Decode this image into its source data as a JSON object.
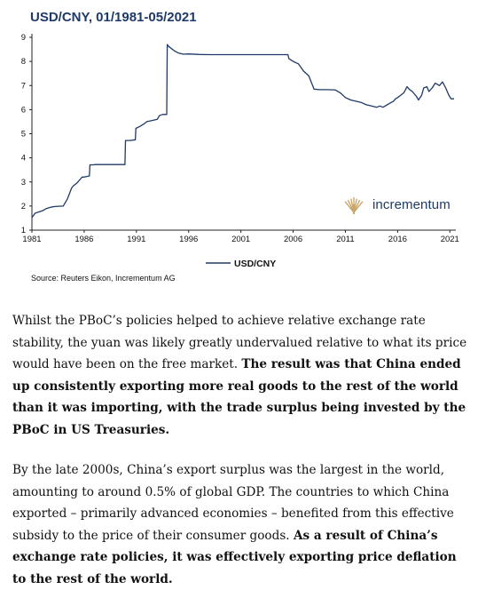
{
  "chart_title": "USD/CNY, 01/1981-05/2021",
  "source": "Source: Reuters Eikon, Incrementum AG",
  "logo": {
    "text": "incrementum",
    "color": "#c9a76b"
  },
  "colors": {
    "title": "#1f3a68",
    "line": "#1f3a68"
  },
  "chart_data": {
    "type": "line",
    "title": "USD/CNY, 01/1981-05/2021",
    "xlim": [
      1981,
      2021.4
    ],
    "ylim": [
      1,
      9
    ],
    "x_ticks": [
      1981,
      1986,
      1991,
      1996,
      2001,
      2006,
      2011,
      2016,
      2021
    ],
    "x_tick_labels": [
      "1981",
      "1986",
      "1991",
      "1996",
      "2001",
      "2006",
      "2011",
      "2016",
      "2021"
    ],
    "y_ticks": [
      1,
      2,
      3,
      4,
      5,
      6,
      7,
      8,
      9
    ],
    "y_tick_labels": [
      "1",
      "2",
      "3",
      "4",
      "5",
      "6",
      "7",
      "8",
      "9"
    ],
    "grid": false,
    "legend": "bottom-center",
    "series": [
      {
        "name": "USD/CNY",
        "color": "#1f3a68",
        "x": [
          1981.0,
          1981.3,
          1981.6,
          1982.0,
          1982.4,
          1982.8,
          1983.2,
          1983.6,
          1984.0,
          1984.4,
          1984.8,
          1985.0,
          1985.3,
          1985.6,
          1985.8,
          1986.0,
          1986.5,
          1986.55,
          1986.9,
          1987.0,
          1987.5,
          1988.0,
          1988.5,
          1989.0,
          1989.9,
          1989.95,
          1990.4,
          1990.9,
          1990.95,
          1991.3,
          1991.7,
          1992.0,
          1992.5,
          1993.0,
          1993.2,
          1993.5,
          1993.9,
          1993.95,
          1994.1,
          1994.6,
          1995.0,
          1995.5,
          1996.0,
          1997.0,
          1998.0,
          2000.0,
          2002.0,
          2004.0,
          2005.5,
          2005.6,
          2006.0,
          2006.5,
          2007.0,
          2007.5,
          2008.0,
          2008.5,
          2009.0,
          2010.0,
          2010.5,
          2011.0,
          2011.5,
          2012.0,
          2012.5,
          2013.0,
          2013.5,
          2014.0,
          2014.3,
          2014.6,
          2015.0,
          2015.4,
          2015.6,
          2015.8,
          2016.0,
          2016.3,
          2016.6,
          2016.9,
          2017.1,
          2017.4,
          2017.8,
          2018.0,
          2018.3,
          2018.5,
          2018.8,
          2019.0,
          2019.3,
          2019.6,
          2019.8,
          2020.0,
          2020.3,
          2020.6,
          2020.9,
          2021.1,
          2021.4
        ],
        "values": [
          1.52,
          1.7,
          1.75,
          1.8,
          1.9,
          1.95,
          1.98,
          1.99,
          2.0,
          2.3,
          2.75,
          2.85,
          2.95,
          3.1,
          3.2,
          3.2,
          3.25,
          3.71,
          3.71,
          3.72,
          3.72,
          3.72,
          3.72,
          3.72,
          3.72,
          4.72,
          4.72,
          4.75,
          5.22,
          5.3,
          5.4,
          5.5,
          5.55,
          5.6,
          5.75,
          5.8,
          5.8,
          8.7,
          8.62,
          8.45,
          8.35,
          8.3,
          8.31,
          8.29,
          8.28,
          8.28,
          8.28,
          8.28,
          8.28,
          8.11,
          8.0,
          7.9,
          7.6,
          7.4,
          6.85,
          6.83,
          6.83,
          6.82,
          6.7,
          6.5,
          6.4,
          6.35,
          6.3,
          6.2,
          6.15,
          6.1,
          6.15,
          6.1,
          6.2,
          6.3,
          6.35,
          6.45,
          6.5,
          6.6,
          6.7,
          6.95,
          6.85,
          6.75,
          6.55,
          6.4,
          6.6,
          6.9,
          6.95,
          6.75,
          6.9,
          7.1,
          7.05,
          7.0,
          7.15,
          6.9,
          6.6,
          6.45,
          6.45
        ]
      }
    ]
  },
  "para1": {
    "normal": "Whilst the PBoC’s policies helped to achieve relative exchange rate stability, the yuan was likely greatly undervalued relative to what its price would have been on the free market. ",
    "bold": "The result was that China ended up consistently exporting more real goods to the rest of the world than it was importing, with the trade surplus being invested by the PBoC in US Treasuries."
  },
  "para2": {
    "normal": "By the late 2000s, China’s export surplus was the largest in the world, amounting to around 0.5% of global GDP. The countries to which China exported – primarily advanced economies – benefited from this effective subsidy to the price of their consumer goods. ",
    "bold": "As a result of China’s exchange rate policies, it was effectively exporting price deflation to the rest of the world."
  }
}
